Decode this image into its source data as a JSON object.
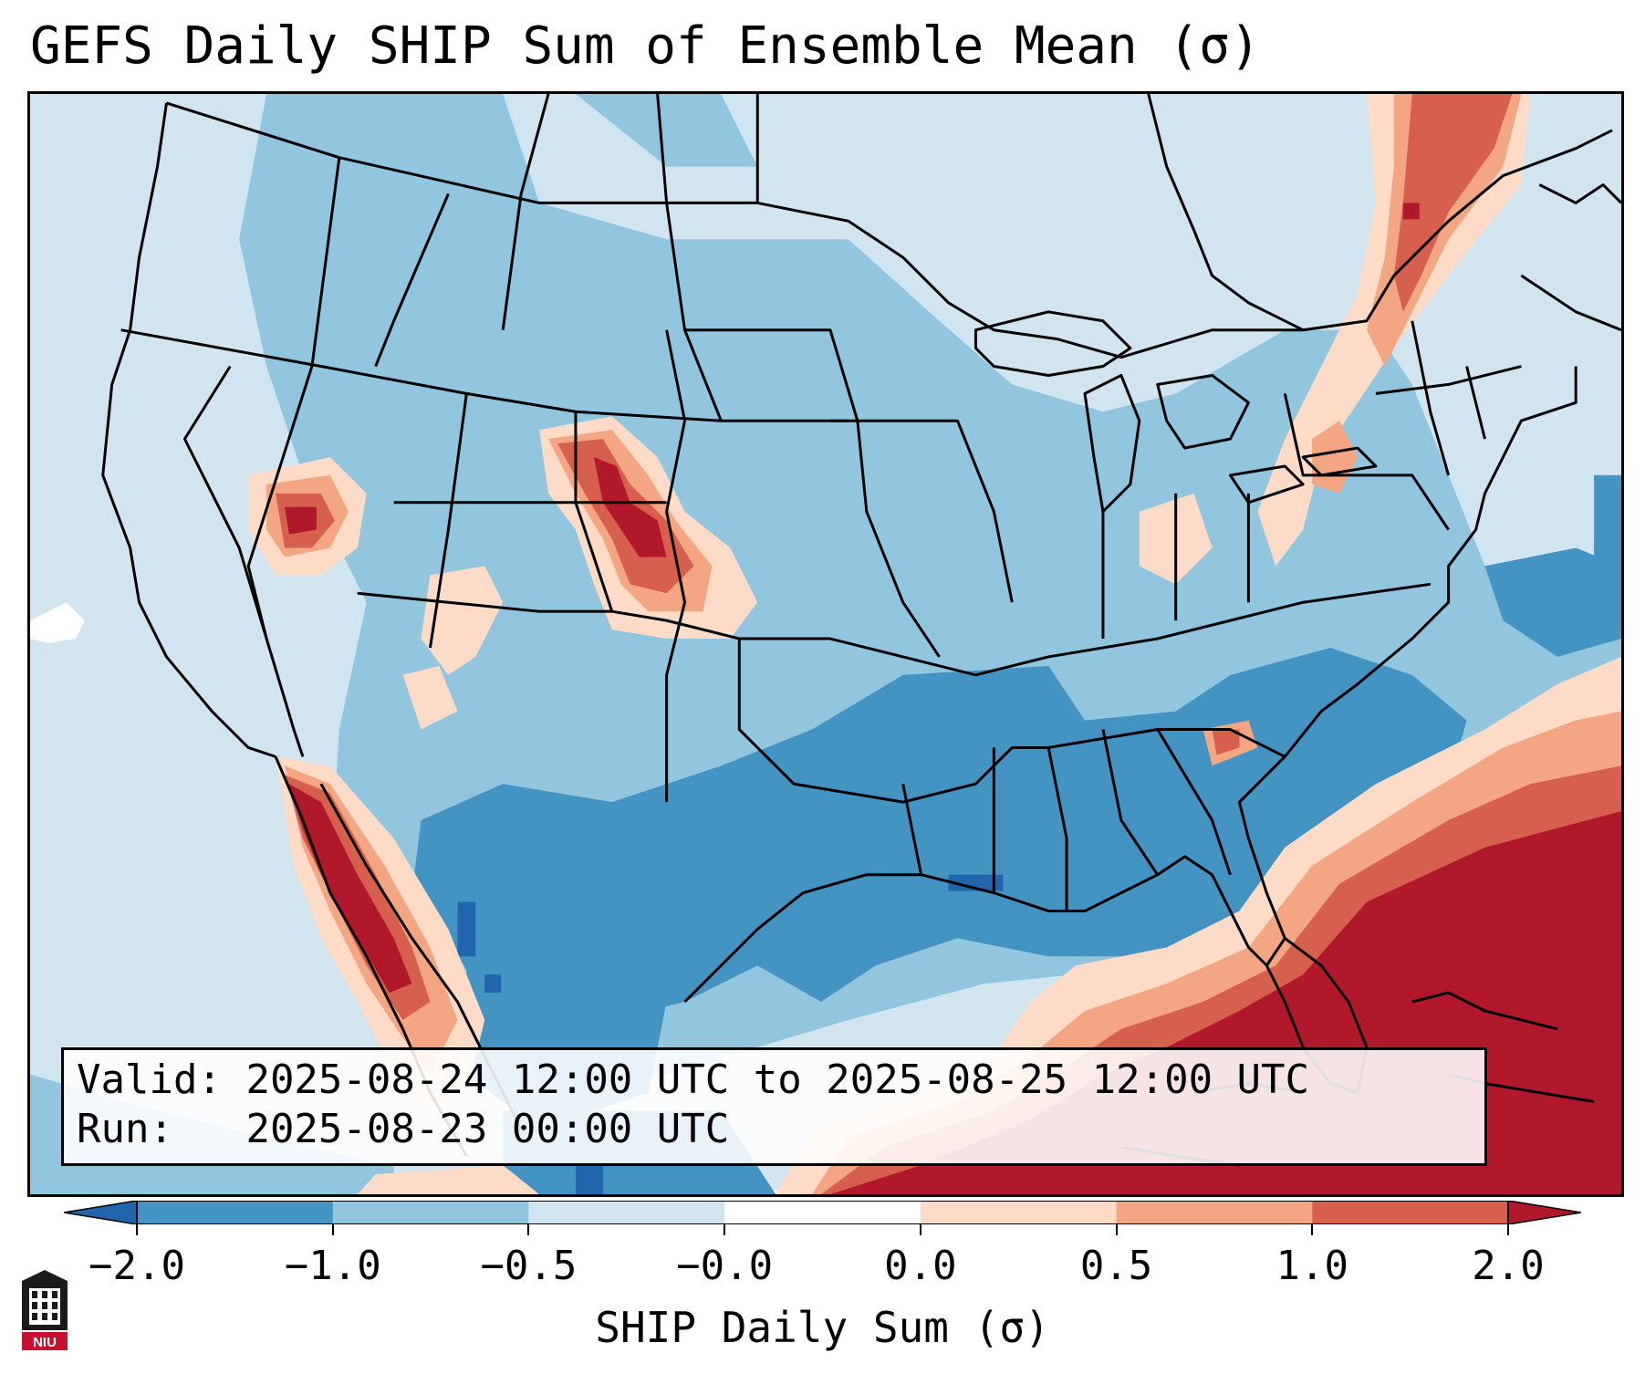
{
  "title": "GEFS Daily SHIP Sum of Ensemble Mean (σ)",
  "info": {
    "valid_label": "Valid:",
    "valid_text": "2025-08-24 12:00 UTC to 2025-08-25 12:00 UTC",
    "run_label": "Run:",
    "run_text": "2025-08-23 00:00 UTC"
  },
  "colorbar": {
    "label": "SHIP Daily Sum (σ)",
    "ticks": [
      "−2.0",
      "−1.0",
      "−0.5",
      "−0.0",
      "0.0",
      "0.5",
      "1.0",
      "2.0"
    ],
    "colors": [
      "#2166ac",
      "#4393c3",
      "#92c5de",
      "#d1e5f0",
      "#ffffff",
      "#fddbc7",
      "#f4a582",
      "#d6604d",
      "#b2182b"
    ]
  },
  "logo": {
    "text": "NIU",
    "icon": "niu-logo-icon"
  }
}
